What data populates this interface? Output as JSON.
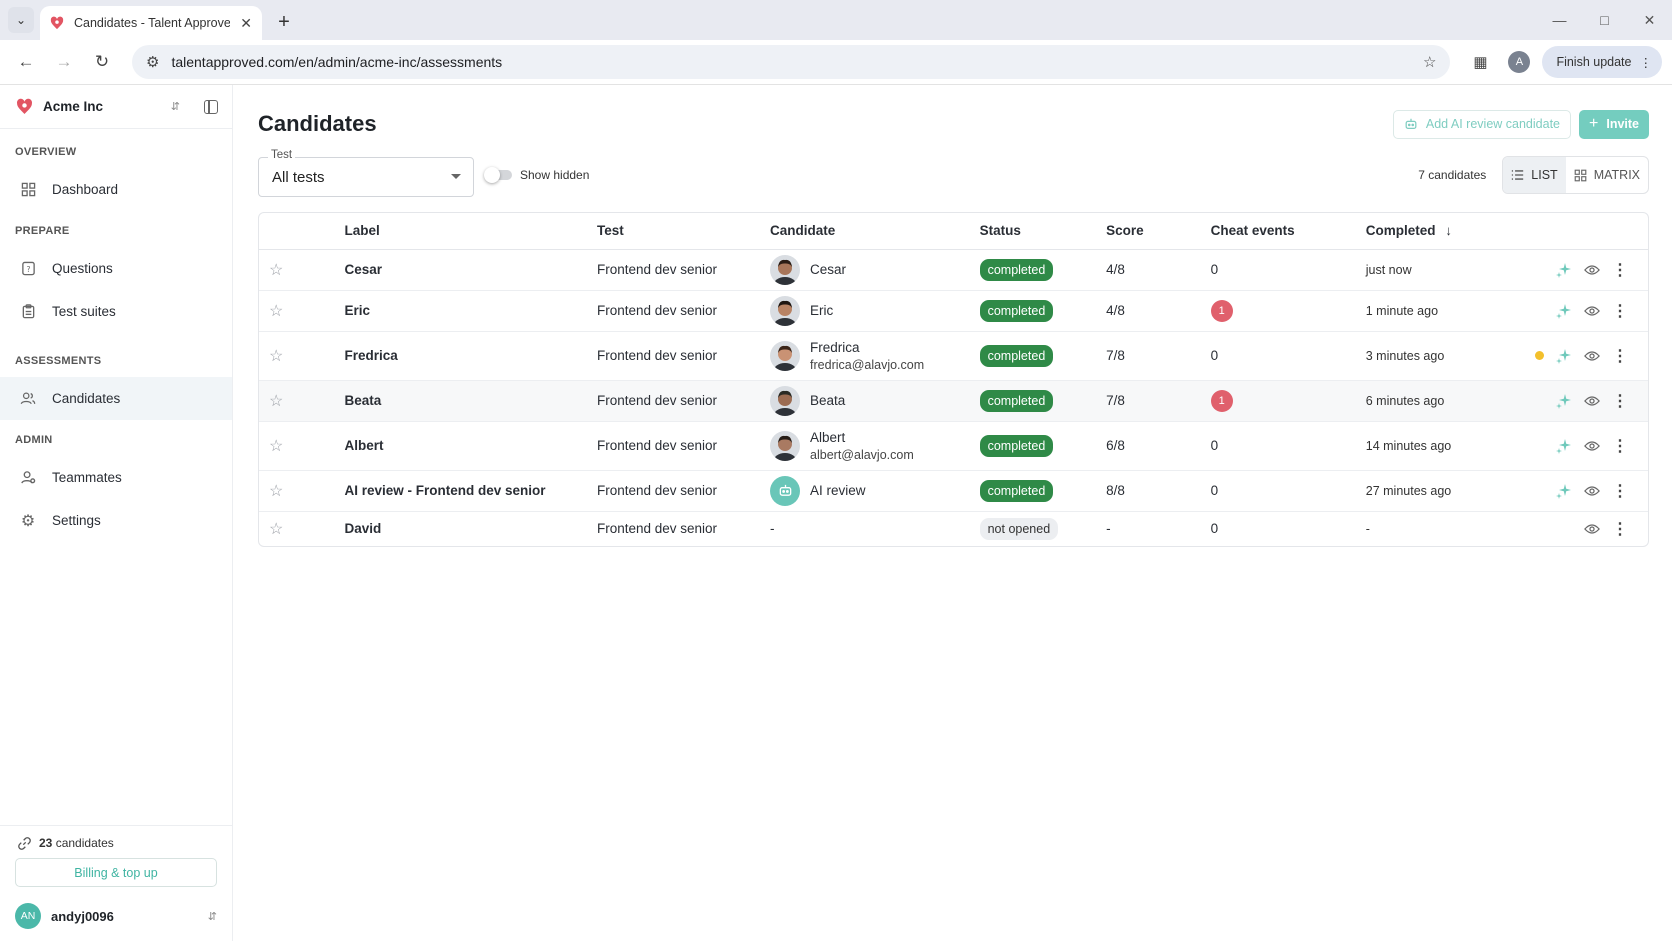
{
  "browser": {
    "tab_title": "Candidates - Talent Approved",
    "url": "talentapproved.com/en/admin/acme-inc/assessments",
    "profile_initial": "A",
    "finish_update": "Finish update"
  },
  "sidebar": {
    "org_name": "Acme Inc",
    "sections": [
      {
        "label": "OVERVIEW",
        "items": [
          {
            "label": "Dashboard",
            "icon": "dashboard-icon"
          }
        ]
      },
      {
        "label": "PREPARE",
        "items": [
          {
            "label": "Questions",
            "icon": "questions-icon"
          },
          {
            "label": "Test suites",
            "icon": "clipboard-icon"
          }
        ]
      },
      {
        "label": "ASSESSMENTS",
        "items": [
          {
            "label": "Candidates",
            "icon": "people-icon",
            "active": true
          }
        ]
      },
      {
        "label": "ADMIN",
        "items": [
          {
            "label": "Teammates",
            "icon": "teammates-icon"
          },
          {
            "label": "Settings",
            "icon": "gear-icon"
          }
        ]
      }
    ],
    "candidates_count": "23",
    "candidates_word": "candidates",
    "billing_label": "Billing & top up",
    "user_initials": "AN",
    "user_name": "andyj0096"
  },
  "main": {
    "title": "Candidates",
    "add_ai_label": "Add AI review candidate",
    "invite_label": "Invite",
    "test_filter_label": "Test",
    "test_filter_value": "All tests",
    "show_hidden_label": "Show hidden",
    "total_label": "7 candidates",
    "view_list": "LIST",
    "view_matrix": "MATRIX"
  },
  "table": {
    "headers": {
      "label": "Label",
      "test": "Test",
      "candidate": "Candidate",
      "status": "Status",
      "score": "Score",
      "cheat": "Cheat events",
      "completed": "Completed"
    },
    "rows": [
      {
        "label": "Cesar",
        "test": "Frontend dev senior",
        "name": "Cesar",
        "email": "",
        "avatar": "photo",
        "skin": "#a8765a",
        "hair": "#2b1d15",
        "status": "completed",
        "score": "4/8",
        "cheat": "0",
        "cheat_flag": false,
        "completed": "just now",
        "ai_icon": true,
        "dot": false,
        "highlight": false
      },
      {
        "label": "Eric",
        "test": "Frontend dev senior",
        "name": "Eric",
        "email": "",
        "avatar": "photo",
        "skin": "#b88364",
        "hair": "#1e1611",
        "status": "completed",
        "score": "4/8",
        "cheat": "1",
        "cheat_flag": true,
        "completed": "1 minute ago",
        "ai_icon": true,
        "dot": false,
        "highlight": false
      },
      {
        "label": "Fredrica",
        "test": "Frontend dev senior",
        "name": "Fredrica",
        "email": "fredrica@alavjo.com",
        "avatar": "photo",
        "skin": "#c99274",
        "hair": "#3a2418",
        "status": "completed",
        "score": "7/8",
        "cheat": "0",
        "cheat_flag": false,
        "completed": "3 minutes ago",
        "ai_icon": true,
        "dot": true,
        "highlight": false
      },
      {
        "label": "Beata",
        "test": "Frontend dev senior",
        "name": "Beata",
        "email": "",
        "avatar": "photo",
        "skin": "#9c6c52",
        "hair": "#2a2a24",
        "status": "completed",
        "score": "7/8",
        "cheat": "1",
        "cheat_flag": true,
        "completed": "6 minutes ago",
        "ai_icon": true,
        "dot": false,
        "highlight": true
      },
      {
        "label": "Albert",
        "test": "Frontend dev senior",
        "name": "Albert",
        "email": "albert@alavjo.com",
        "avatar": "photo",
        "skin": "#a97a62",
        "hair": "#261c16",
        "status": "completed",
        "score": "6/8",
        "cheat": "0",
        "cheat_flag": false,
        "completed": "14 minutes ago",
        "ai_icon": true,
        "dot": false,
        "highlight": false
      },
      {
        "label": "AI review - Frontend dev senior",
        "test": "Frontend dev senior",
        "name": "AI review",
        "email": "",
        "avatar": "ai",
        "skin": "",
        "hair": "",
        "status": "completed",
        "score": "8/8",
        "cheat": "0",
        "cheat_flag": false,
        "completed": "27 minutes ago",
        "ai_icon": true,
        "dot": false,
        "highlight": false
      },
      {
        "label": "David",
        "test": "Frontend dev senior",
        "name": "-",
        "email": "",
        "avatar": "none",
        "skin": "",
        "hair": "",
        "status": "not opened",
        "score": "-",
        "cheat": "0",
        "cheat_flag": false,
        "completed": "-",
        "ai_icon": false,
        "dot": false,
        "highlight": false
      }
    ]
  },
  "colors": {
    "accent": "#3fb4a2",
    "accent_light": "#74cdbf",
    "completed_badge": "#2f8a47",
    "cheat_badge": "#e0606c",
    "dot": "#f3c02c"
  }
}
